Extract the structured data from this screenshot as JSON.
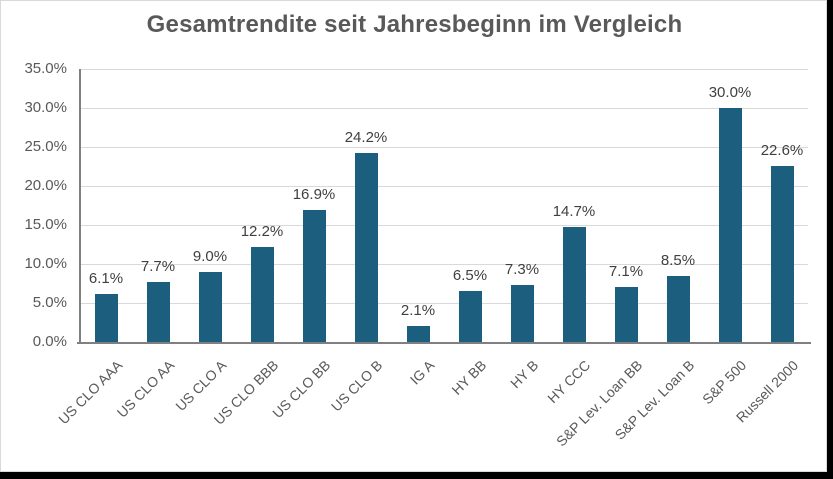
{
  "chart_data": {
    "type": "bar",
    "title": "Gesamtrendite seit Jahresbeginn im Vergleich",
    "categories": [
      "US CLO AAA",
      "US CLO AA",
      "US CLO A",
      "US CLO BBB",
      "US CLO BB",
      "US CLO B",
      "IG A",
      "HY BB",
      "HY B",
      "HY CCC",
      "S&P Lev. Loan BB",
      "S&P Lev. Loan B",
      "S&P 500",
      "Russell 2000"
    ],
    "values": [
      6.1,
      7.7,
      9.0,
      12.2,
      16.9,
      24.2,
      2.1,
      6.5,
      7.3,
      14.7,
      7.1,
      8.5,
      30.0,
      22.6
    ],
    "data_labels": [
      "6.1%",
      "7.7%",
      "9.0%",
      "12.2%",
      "16.9%",
      "24.2%",
      "2.1%",
      "6.5%",
      "7.3%",
      "14.7%",
      "7.1%",
      "8.5%",
      "30.0%",
      "22.6%"
    ],
    "xlabel": "",
    "ylabel": "",
    "ylim": [
      0,
      35
    ],
    "y_tick_labels": [
      "0.0%",
      "5.0%",
      "10.0%",
      "15.0%",
      "20.0%",
      "25.0%",
      "30.0%",
      "35.0%"
    ],
    "grid": true,
    "legend": "none",
    "colors": {
      "bar": "#1b5e7e",
      "title_text": "#595959",
      "value_label_text": "#404040",
      "axis_text": "#595959",
      "gridline": "#d9d9d9",
      "axis_line": "#808080",
      "background": "#ffffff",
      "outer_edge": "#000000"
    }
  }
}
